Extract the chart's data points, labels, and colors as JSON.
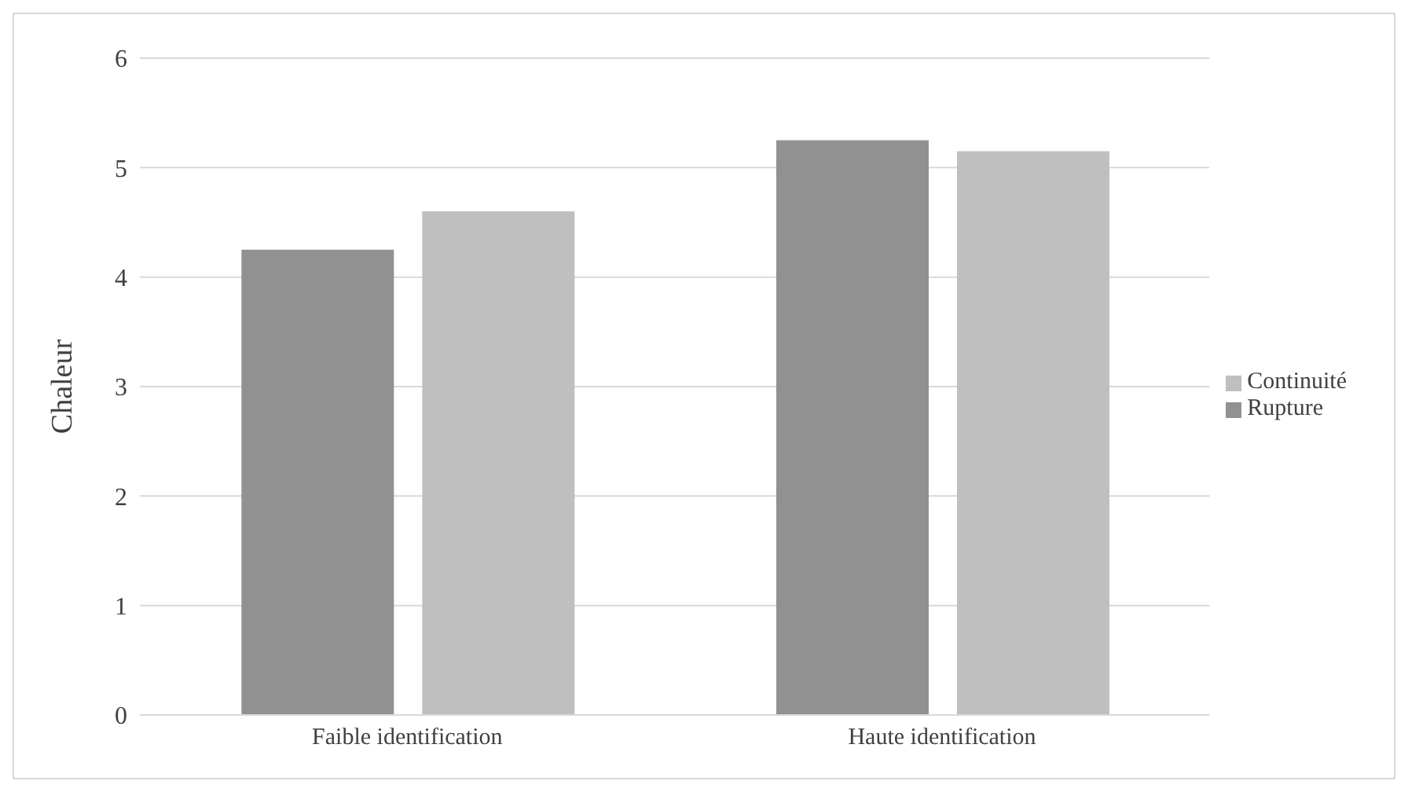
{
  "chart_data": {
    "type": "bar",
    "ylabel": "Chaleur",
    "categories": [
      "Faible identification",
      "Haute identification"
    ],
    "series": [
      {
        "name": "Rupture",
        "color": "#919191",
        "values": [
          4.25,
          5.25
        ]
      },
      {
        "name": "Continuité",
        "color": "#bfbfbf",
        "values": [
          4.6,
          5.15
        ]
      }
    ],
    "ylim": [
      0,
      6
    ],
    "yticks": [
      0,
      1,
      2,
      3,
      4,
      5,
      6
    ],
    "grid": "y",
    "legend": "right"
  }
}
